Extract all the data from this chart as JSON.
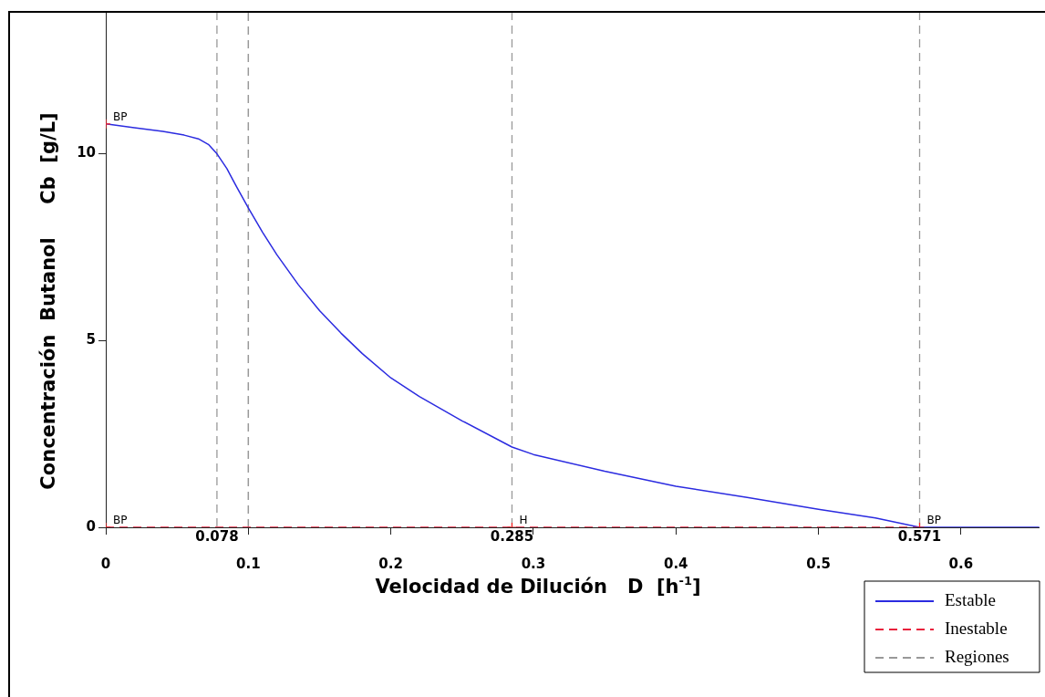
{
  "chart_data": {
    "type": "line",
    "xlabel": "Velocidad de Dilución   D  [h$^{-1}$]",
    "ylabel": "Concentración  Butanol     Cb  [g/L]",
    "xlim": [
      0,
      0.655
    ],
    "ylim": [
      0,
      13.8
    ],
    "xticks": [
      0,
      0.1,
      0.2,
      0.3,
      0.4,
      0.5,
      0.6
    ],
    "yticks": [
      0,
      5,
      10
    ],
    "grid": false,
    "legend": "bottom right",
    "marker": "none",
    "series": [
      {
        "name": "Estable",
        "color": "#2b2be0",
        "line_style": "solid",
        "x": [
          0,
          0.02,
          0.04,
          0.055,
          0.065,
          0.072,
          0.078,
          0.085,
          0.092,
          0.1,
          0.11,
          0.12,
          0.135,
          0.15,
          0.165,
          0.18,
          0.2,
          0.22,
          0.25,
          0.285,
          0.3,
          0.35,
          0.4,
          0.45,
          0.5,
          0.54,
          0.571,
          0.6,
          0.655
        ],
        "values": [
          10.8,
          10.7,
          10.6,
          10.5,
          10.4,
          10.25,
          10.0,
          9.6,
          9.1,
          8.55,
          7.9,
          7.3,
          6.5,
          5.8,
          5.2,
          4.65,
          4.0,
          3.5,
          2.85,
          2.15,
          1.95,
          1.5,
          1.1,
          0.8,
          0.48,
          0.25,
          0,
          0,
          0
        ]
      },
      {
        "name": "Inestable",
        "color": "#e8213c",
        "line_style": "dashed",
        "x": [
          0,
          0.571
        ],
        "values": [
          0,
          0
        ]
      },
      {
        "name": "Regiones",
        "color": "#999999",
        "line_style": "dashed",
        "x": [
          0.1,
          0.1
        ],
        "values": [
          0,
          13.8
        ]
      },
      {
        "type": "scatter",
        "color": "#ff2020",
        "marker": "cross",
        "x": [
          0,
          0,
          0.285,
          0.571
        ],
        "values": [
          10.8,
          0,
          0,
          0
        ]
      }
    ],
    "ref_lines": [
      {
        "axis": "x",
        "value": 0.078,
        "label": "0.078",
        "color": "#999999",
        "line_style": "dashed"
      },
      {
        "axis": "x",
        "value": 0.285,
        "label": "0.285",
        "color": "#999999",
        "line_style": "dashed"
      },
      {
        "axis": "x",
        "value": 0.571,
        "label": "0.571",
        "color": "#999999",
        "line_style": "dashed"
      }
    ],
    "annotations": [
      {
        "text": "BP",
        "x": 0,
        "y": 10.8
      },
      {
        "text": "BP",
        "x": 0,
        "y": 0
      },
      {
        "text": "H",
        "x": 0.285,
        "y": 0
      },
      {
        "text": "BP",
        "x": 0.571,
        "y": 0
      }
    ]
  }
}
